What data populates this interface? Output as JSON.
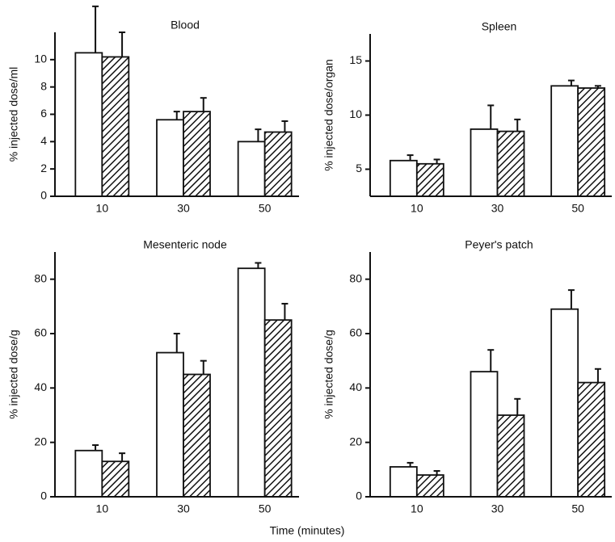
{
  "chart_data": [
    {
      "type": "bar",
      "title": "Blood",
      "ylabel": "% injected dose/ml",
      "categories": [
        "10",
        "30",
        "50"
      ],
      "series": [
        {
          "color": "#ffffff",
          "pattern": "none",
          "values": [
            10.5,
            5.6,
            4.0
          ],
          "errors": [
            3.4,
            0.6,
            0.9
          ]
        },
        {
          "color": "#ffffff",
          "pattern": "hatch",
          "values": [
            10.2,
            6.2,
            4.7
          ],
          "errors": [
            1.8,
            1.0,
            0.8
          ]
        }
      ],
      "ylim": [
        0,
        12
      ],
      "yticks": [
        0,
        2,
        4,
        6,
        8,
        10
      ]
    },
    {
      "type": "bar",
      "title": "Spleen",
      "ylabel": "% injected dose/organ",
      "categories": [
        "10",
        "30",
        "50"
      ],
      "series": [
        {
          "color": "#ffffff",
          "pattern": "none",
          "values": [
            5.8,
            8.7,
            12.7
          ],
          "errors": [
            0.5,
            2.2,
            0.5
          ]
        },
        {
          "color": "#ffffff",
          "pattern": "hatch",
          "values": [
            5.5,
            8.5,
            12.5
          ],
          "errors": [
            0.4,
            1.1,
            0.2
          ]
        }
      ],
      "ylim": [
        2.5,
        17.5
      ],
      "yticks": [
        5,
        10,
        15
      ]
    },
    {
      "type": "bar",
      "title": "Mesenteric node",
      "ylabel": "% injected dose/g",
      "categories": [
        "10",
        "30",
        "50"
      ],
      "series": [
        {
          "color": "#ffffff",
          "pattern": "none",
          "values": [
            17,
            53,
            84
          ],
          "errors": [
            2,
            7,
            2
          ]
        },
        {
          "color": "#ffffff",
          "pattern": "hatch",
          "values": [
            13,
            45,
            65
          ],
          "errors": [
            3,
            5,
            6
          ]
        }
      ],
      "ylim": [
        0,
        90
      ],
      "yticks": [
        0,
        20,
        40,
        60,
        80
      ]
    },
    {
      "type": "bar",
      "title": "Peyer's patch",
      "ylabel": "% injected dose/g",
      "categories": [
        "10",
        "30",
        "50"
      ],
      "series": [
        {
          "color": "#ffffff",
          "pattern": "none",
          "values": [
            11,
            46,
            69
          ],
          "errors": [
            1.5,
            8,
            7
          ]
        },
        {
          "color": "#ffffff",
          "pattern": "hatch",
          "values": [
            8,
            30,
            42
          ],
          "errors": [
            1.5,
            6,
            5
          ]
        }
      ],
      "ylim": [
        0,
        90
      ],
      "yticks": [
        0,
        20,
        40,
        60,
        80
      ]
    }
  ],
  "shared_xlabel": "Time (minutes)"
}
